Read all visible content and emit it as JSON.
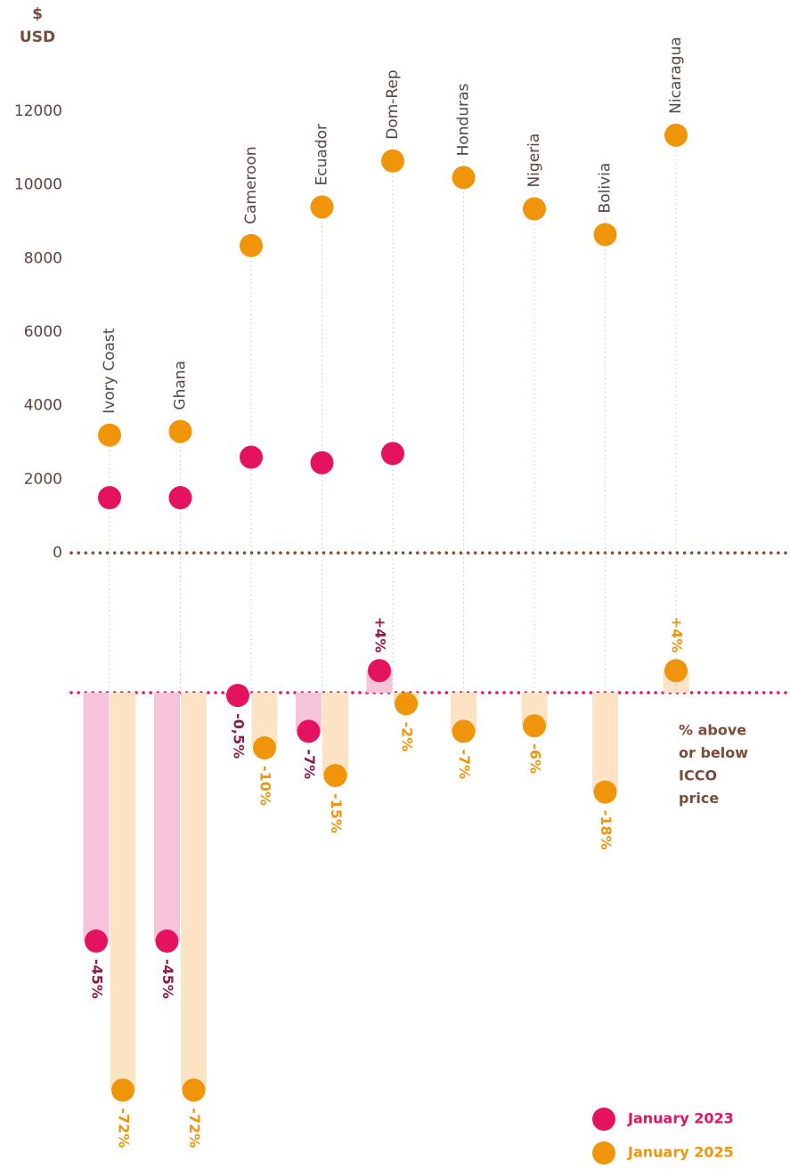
{
  "chart_data": [
    {
      "type": "dot",
      "y_label_lines": [
        "$",
        "USD"
      ],
      "categories": [
        "Ivory Coast",
        "Ghana",
        "Cameroon",
        "Ecuador",
        "Dom-Rep",
        "Honduras",
        "Nigeria",
        "Bolivia",
        "Nicaragua"
      ],
      "series": [
        {
          "name": "January 2023",
          "color": "#e5135f",
          "values": [
            1500,
            1500,
            2600,
            2450,
            2700,
            null,
            null,
            null,
            null
          ]
        },
        {
          "name": "January 2025",
          "color": "#f0940a",
          "values": [
            3200,
            3300,
            8350,
            9400,
            10650,
            10200,
            9350,
            8650,
            11350
          ]
        }
      ],
      "ylim": [
        0,
        12000
      ],
      "yticks": [
        0,
        2000,
        4000,
        6000,
        8000,
        10000,
        12000
      ],
      "grid": false
    },
    {
      "type": "bar",
      "annotation_lines": [
        "% above",
        "or below",
        "ICCO",
        "price"
      ],
      "series": [
        {
          "color": "#e5135f",
          "bar_color": "#f7c3d8",
          "label_color": "#8c1c4c",
          "values": [
            -45,
            -45,
            -0.5,
            -7,
            4,
            null,
            null,
            null,
            null
          ],
          "value_labels": [
            "-45%",
            "-45%",
            "-0,5%",
            "-7%",
            "+4%",
            null,
            null,
            null,
            null
          ]
        },
        {
          "color": "#f0940a",
          "bar_color": "#fbe3c3",
          "label_color": "#f0940a",
          "values": [
            -72,
            -72,
            -10,
            -15,
            -2,
            -7,
            -6,
            -18,
            4
          ],
          "value_labels": [
            "-72%",
            "-72%",
            "-10%",
            "-15%",
            "-2%",
            "-7%",
            "-6%",
            "-18%",
            "+4%"
          ]
        }
      ],
      "ylim": [
        -75,
        25
      ]
    }
  ]
}
